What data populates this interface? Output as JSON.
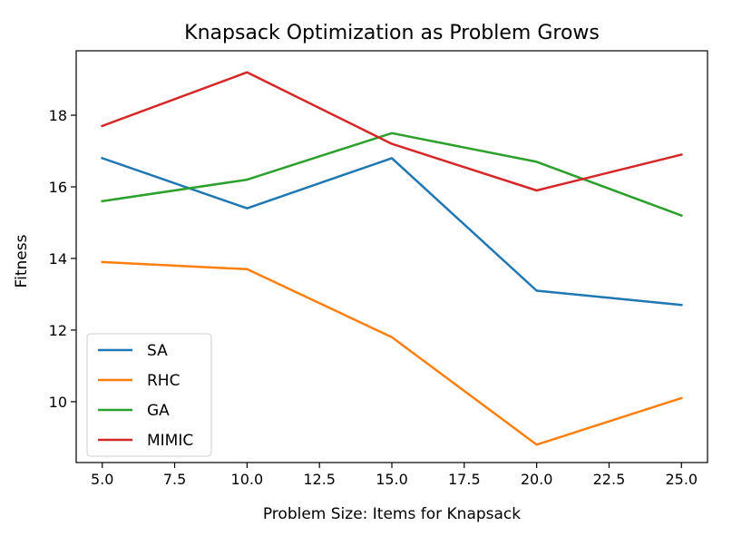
{
  "chart_data": {
    "type": "line",
    "title": "Knapsack Optimization as Problem Grows",
    "xlabel": "Problem Size: Items for Knapsack",
    "ylabel": "Fitness",
    "x": [
      5,
      10,
      15,
      20,
      25
    ],
    "xlim": [
      4.1,
      25.9
    ],
    "ylim": [
      8.3,
      19.8
    ],
    "xticks": [
      "5.0",
      "7.5",
      "10.0",
      "12.5",
      "15.0",
      "17.5",
      "20.0",
      "22.5",
      "25.0"
    ],
    "xtick_values": [
      5,
      7.5,
      10,
      12.5,
      15,
      17.5,
      20,
      22.5,
      25
    ],
    "yticks": [
      "10",
      "12",
      "14",
      "16",
      "18"
    ],
    "ytick_values": [
      10,
      12,
      14,
      16,
      18
    ],
    "grid": false,
    "legend_position": "lower-left",
    "series": [
      {
        "name": "SA",
        "color": "#1f77b4",
        "values": [
          16.8,
          15.4,
          16.8,
          13.1,
          12.7
        ]
      },
      {
        "name": "RHC",
        "color": "#ff7f0e",
        "values": [
          13.9,
          13.7,
          11.8,
          8.8,
          10.1
        ]
      },
      {
        "name": "GA",
        "color": "#2ca02c",
        "values": [
          15.6,
          16.2,
          17.5,
          16.7,
          15.2
        ]
      },
      {
        "name": "MIMIC",
        "color": "#d62728",
        "values": [
          17.7,
          19.2,
          17.2,
          15.9,
          16.9
        ]
      }
    ]
  }
}
